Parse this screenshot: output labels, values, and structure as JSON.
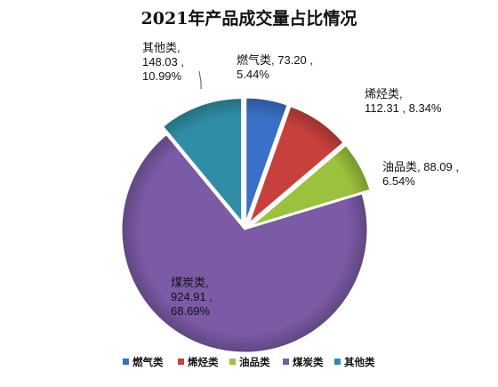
{
  "chart_data": {
    "type": "pie",
    "title": "2021年产品成交量占比情况",
    "categories": [
      "燃气类",
      "烯烃类",
      "油品类",
      "煤炭类",
      "其他类"
    ],
    "values": [
      73.2,
      112.31,
      88.09,
      924.91,
      148.03
    ],
    "percentages": [
      5.44,
      8.34,
      6.54,
      68.69,
      10.99
    ],
    "labels": [
      [
        "燃气类, 73.20 ,",
        "5.44%"
      ],
      [
        "烯烃类,",
        "112.31 , 8.34%"
      ],
      [
        "油品类, 88.09 ,",
        "6.54%"
      ],
      [
        "煤炭类,",
        "924.91 ,",
        "68.69%"
      ],
      [
        "其他类,",
        "148.03 ,",
        "10.99%"
      ]
    ],
    "colors": [
      "#3a70c8",
      "#c8403c",
      "#9bc23c",
      "#7b5aa6",
      "#2f8ea6"
    ],
    "exploded": true,
    "legend": {
      "position": "bottom",
      "marker": "square"
    },
    "start_angle_deg": 0,
    "direction": "clockwise"
  }
}
